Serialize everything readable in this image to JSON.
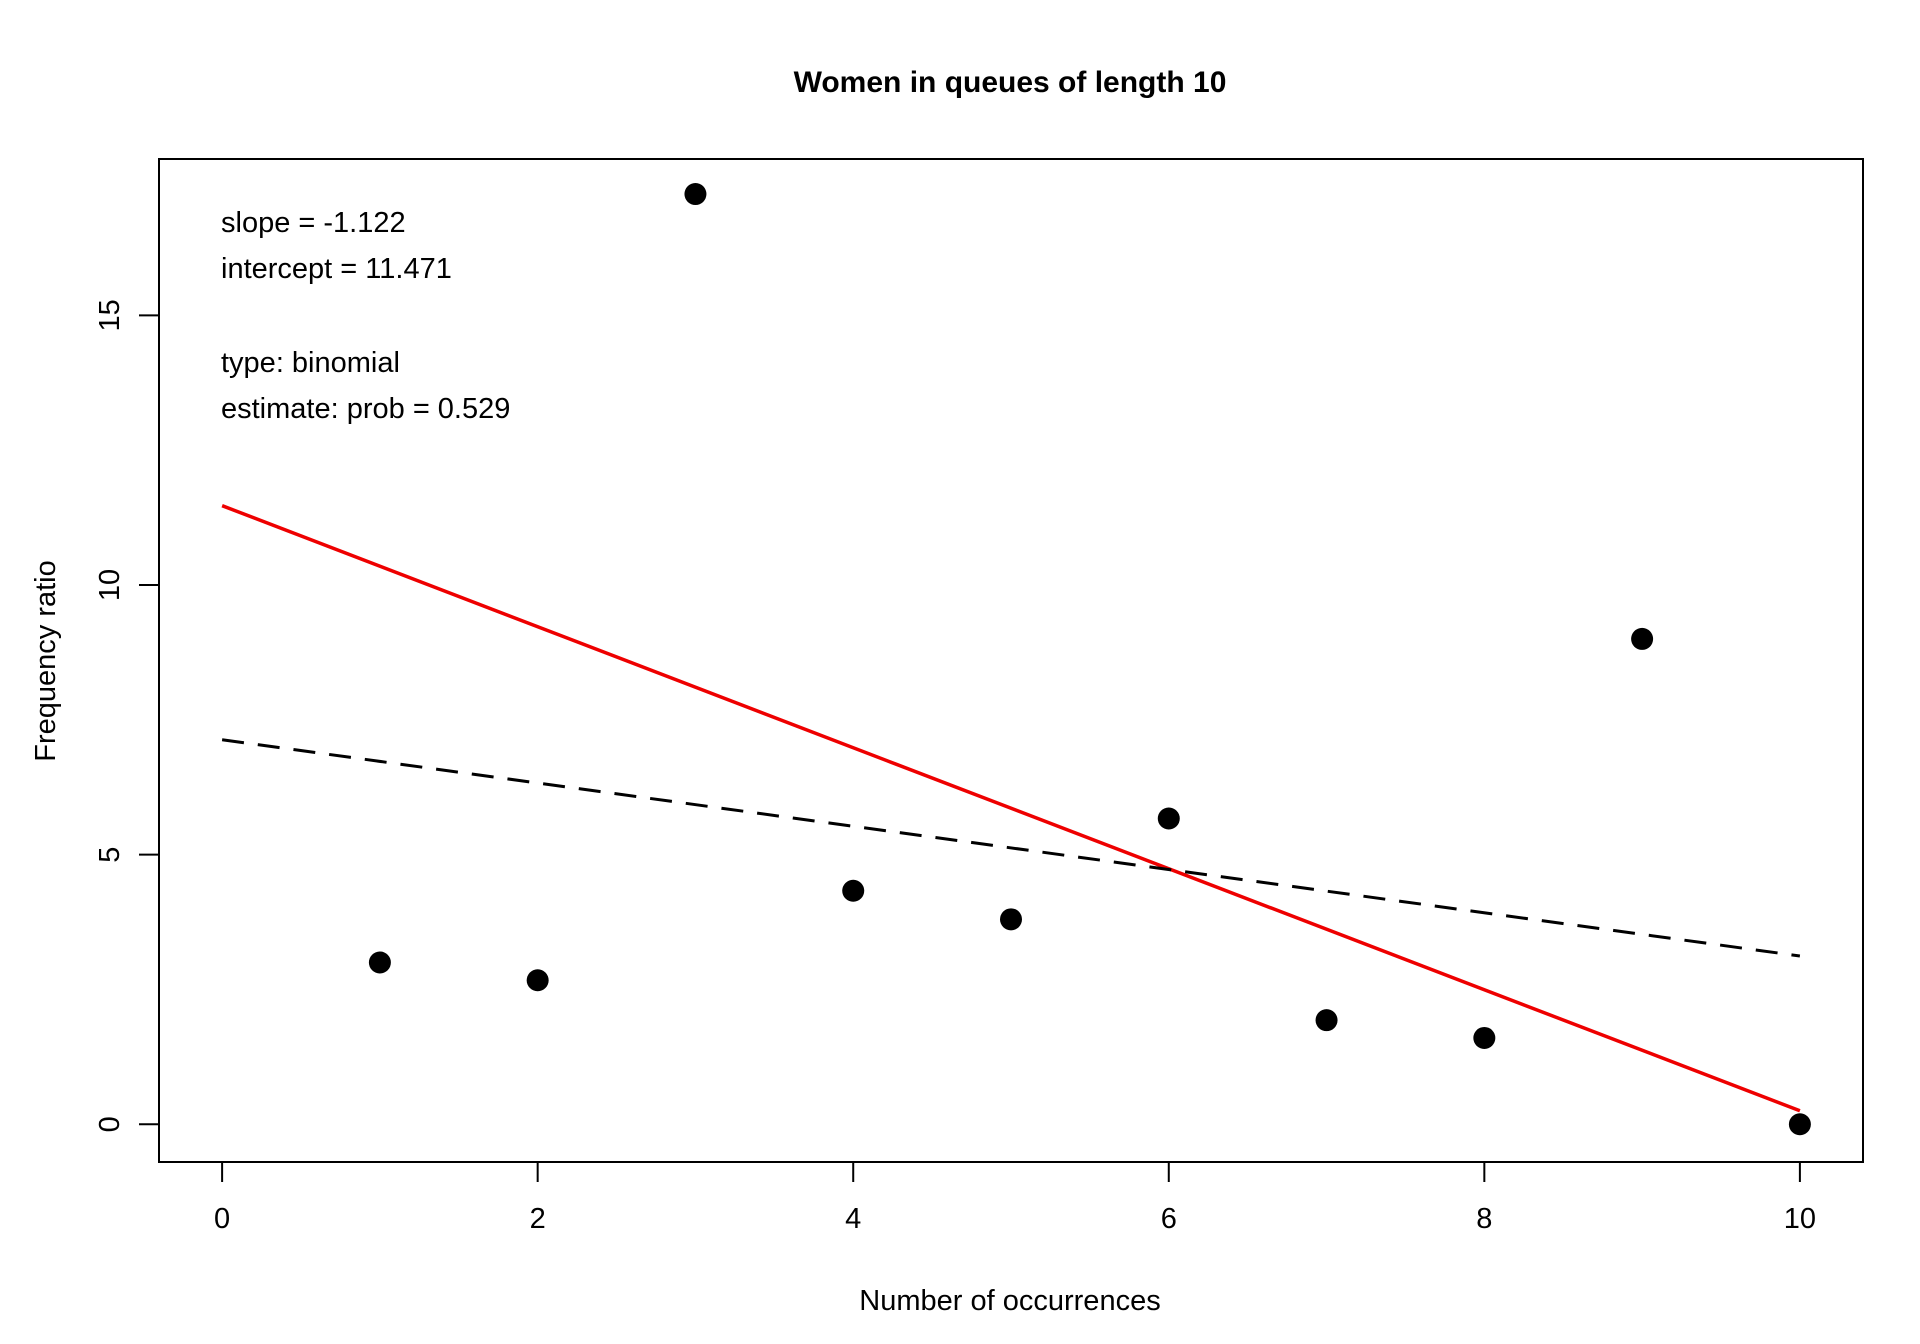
{
  "chart_data": {
    "type": "scatter",
    "title": "Women in queues of length 10",
    "xlabel": "Number of occurrences",
    "ylabel": "Frequency ratio",
    "xlim": [
      -0.4,
      10.4
    ],
    "ylim": [
      -0.7,
      17.9
    ],
    "x_ticks": [
      0,
      2,
      4,
      6,
      8,
      10
    ],
    "y_ticks": [
      0,
      5,
      10,
      15
    ],
    "grid": false,
    "points": [
      {
        "x": 1,
        "y": 3.0
      },
      {
        "x": 2,
        "y": 2.67
      },
      {
        "x": 3,
        "y": 17.25
      },
      {
        "x": 4,
        "y": 4.33
      },
      {
        "x": 5,
        "y": 3.8
      },
      {
        "x": 6,
        "y": 5.67
      },
      {
        "x": 7,
        "y": 1.93
      },
      {
        "x": 8,
        "y": 1.6
      },
      {
        "x": 9,
        "y": 9.0
      },
      {
        "x": 10,
        "y": 0.0
      }
    ],
    "lines": [
      {
        "style": "solid",
        "color": "#ee0000",
        "x": [
          0,
          10
        ],
        "y": [
          11.471,
          0.25
        ]
      },
      {
        "style": "dashed",
        "color": "#000000",
        "x": [
          0,
          10
        ],
        "y": [
          7.13,
          3.12
        ]
      }
    ],
    "annotations": [
      "slope = -1.122",
      "intercept = 11.471",
      "type: binomial",
      "estimate: prob = 0.529"
    ],
    "point_color": "#000000"
  }
}
